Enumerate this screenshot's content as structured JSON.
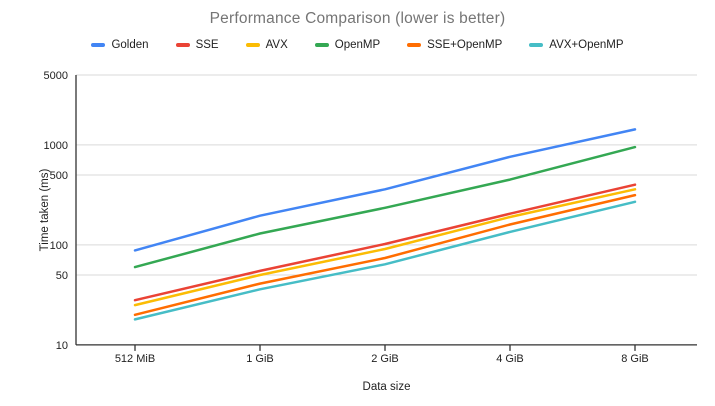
{
  "chart_data": {
    "type": "line",
    "title": "Performance Comparison (lower is better)",
    "xlabel": "Data size",
    "ylabel": "Time taken (ms)",
    "categories": [
      "512 MiB",
      "1 GiB",
      "2 GiB",
      "4 GiB",
      "8 GiB"
    ],
    "series": [
      {
        "name": "Golden",
        "color": "#4285F4",
        "values": [
          88,
          196,
          360,
          760,
          1430
        ]
      },
      {
        "name": "SSE",
        "color": "#EA4335",
        "values": [
          28,
          55,
          102,
          205,
          400
        ]
      },
      {
        "name": "AVX",
        "color": "#FBBC04",
        "values": [
          25,
          50,
          91,
          190,
          360
        ]
      },
      {
        "name": "OpenMP",
        "color": "#34A853",
        "values": [
          60,
          130,
          235,
          450,
          950
        ]
      },
      {
        "name": "SSE+OpenMP",
        "color": "#FF6D01",
        "values": [
          20,
          41,
          74,
          160,
          315
        ]
      },
      {
        "name": "AVX+OpenMP",
        "color": "#46BDC6",
        "values": [
          18,
          36,
          64,
          135,
          270
        ]
      }
    ],
    "y_scale": "log",
    "y_ticks": [
      5000,
      1000,
      500,
      100,
      50,
      10
    ],
    "ylim": [
      10,
      5000
    ],
    "grid": true,
    "legend_position": "top",
    "colors": {
      "title_text": "#757575",
      "axis_text": "#222222",
      "gridline": "#d9d9d9",
      "axis_line": "#333333",
      "background": "#ffffff"
    }
  }
}
